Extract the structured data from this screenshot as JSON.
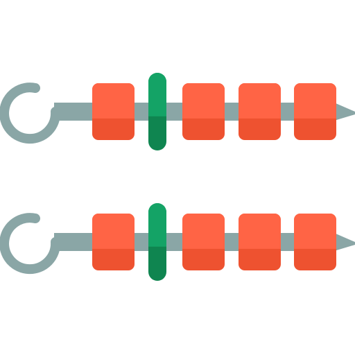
{
  "title": "",
  "icon": "skewers-icon",
  "skewers": [
    {
      "name": "skewer-top",
      "pieces": [
        "meat",
        "pepper",
        "meat",
        "meat",
        "meat"
      ]
    },
    {
      "name": "skewer-bottom",
      "pieces": [
        "meat",
        "pepper",
        "meat",
        "meat",
        "meat"
      ]
    }
  ],
  "colors": {
    "skewer": "#8aa6a6",
    "meat_top": "#ff6445",
    "meat_bottom": "#ee5230",
    "pepper_top": "#14a366",
    "pepper_bottom": "#0f8550",
    "background": "#ffffff"
  }
}
